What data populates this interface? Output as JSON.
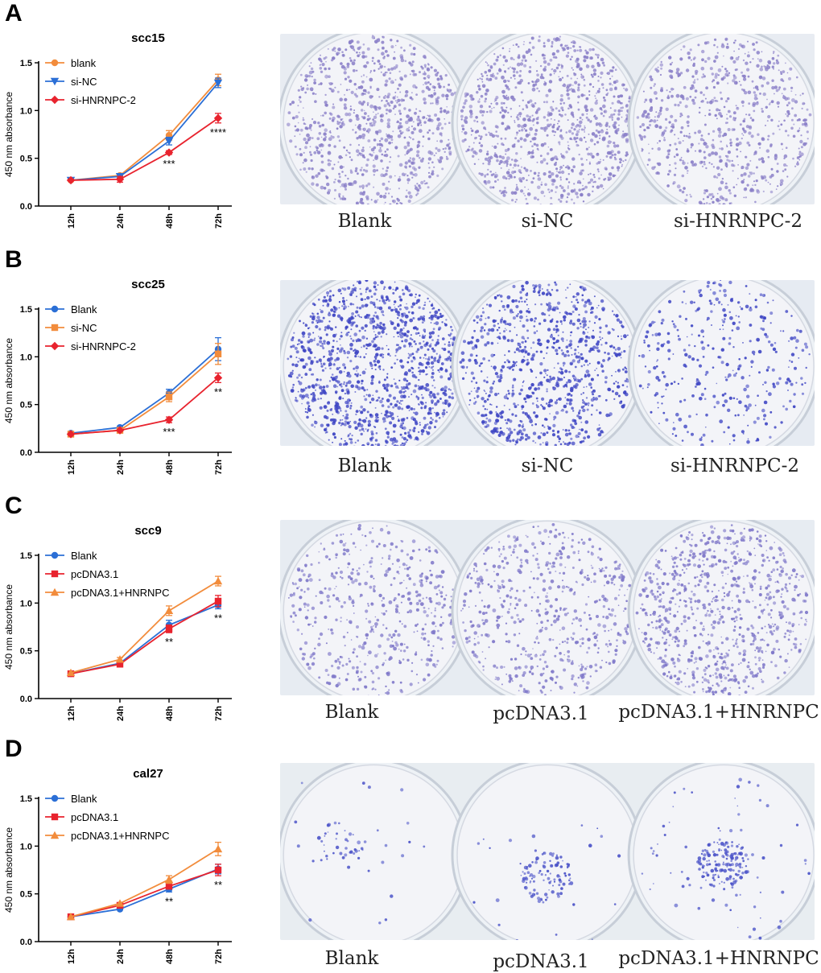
{
  "chart_data": [
    {
      "panel": "A",
      "type": "line",
      "title": "scc15",
      "ylabel": "450 nm absorbance",
      "xlabel": "",
      "categories": [
        "12h",
        "24h",
        "48h",
        "72h"
      ],
      "ylim": [
        0,
        1.5
      ],
      "yticks": [
        "0.0",
        "0.5",
        "1.0",
        "1.5"
      ],
      "series": [
        {
          "name": "blank",
          "color": "#f28c3c",
          "marker": "circle",
          "values": [
            0.27,
            0.32,
            0.74,
            1.32
          ],
          "errors": [
            0.01,
            0.02,
            0.05,
            0.06
          ]
        },
        {
          "name": "si-NC",
          "color": "#2b6fd6",
          "marker": "triangle-down",
          "values": [
            0.27,
            0.31,
            0.68,
            1.29
          ],
          "errors": [
            0.01,
            0.02,
            0.04,
            0.05
          ]
        },
        {
          "name": "si-HNRNPC-2",
          "color": "#e8232e",
          "marker": "diamond",
          "values": [
            0.27,
            0.28,
            0.56,
            0.92
          ],
          "errors": [
            0.01,
            0.03,
            0.02,
            0.05
          ]
        }
      ],
      "annotations": [
        {
          "category": "48h",
          "text": "***"
        },
        {
          "category": "72h",
          "text": "****"
        }
      ],
      "legend": "top-left"
    },
    {
      "panel": "B",
      "type": "line",
      "title": "scc25",
      "ylabel": "450 nm absorbance",
      "xlabel": "",
      "categories": [
        "12h",
        "24h",
        "48h",
        "72h"
      ],
      "ylim": [
        0,
        1.5
      ],
      "yticks": [
        "0.0",
        "0.5",
        "1.0",
        "1.5"
      ],
      "series": [
        {
          "name": "Blank",
          "color": "#2b6fd6",
          "marker": "circle",
          "values": [
            0.2,
            0.26,
            0.62,
            1.08
          ],
          "errors": [
            0.01,
            0.01,
            0.04,
            0.12
          ]
        },
        {
          "name": "si-NC",
          "color": "#f28c3c",
          "marker": "square",
          "values": [
            0.19,
            0.23,
            0.58,
            1.03
          ],
          "errors": [
            0.01,
            0.01,
            0.05,
            0.11
          ]
        },
        {
          "name": "si-HNRNPC-2",
          "color": "#e8232e",
          "marker": "diamond",
          "values": [
            0.19,
            0.23,
            0.34,
            0.78
          ],
          "errors": [
            0.01,
            0.01,
            0.03,
            0.05
          ]
        }
      ],
      "annotations": [
        {
          "category": "48h",
          "text": "***"
        },
        {
          "category": "72h",
          "text": "**"
        }
      ],
      "legend": "top-left"
    },
    {
      "panel": "C",
      "type": "line",
      "title": "scc9",
      "ylabel": "450 nm absorbance",
      "xlabel": "",
      "categories": [
        "12h",
        "24h",
        "48h",
        "72h"
      ],
      "ylim": [
        0,
        1.5
      ],
      "yticks": [
        "0.0",
        "0.5",
        "1.0",
        "1.5"
      ],
      "series": [
        {
          "name": "Blank",
          "color": "#2b6fd6",
          "marker": "circle",
          "values": [
            0.26,
            0.37,
            0.77,
            0.98
          ],
          "errors": [
            0.01,
            0.01,
            0.05,
            0.04
          ]
        },
        {
          "name": "pcDNA3.1",
          "color": "#e8232e",
          "marker": "square",
          "values": [
            0.26,
            0.36,
            0.73,
            1.02
          ],
          "errors": [
            0.01,
            0.01,
            0.04,
            0.06
          ]
        },
        {
          "name": "pcDNA3.1+HNRNPC",
          "color": "#f28c3c",
          "marker": "triangle-up",
          "values": [
            0.27,
            0.41,
            0.92,
            1.23
          ],
          "errors": [
            0.01,
            0.02,
            0.05,
            0.05
          ]
        }
      ],
      "annotations": [
        {
          "category": "48h",
          "text": "**"
        },
        {
          "category": "72h",
          "text": "**"
        }
      ],
      "legend": "top-left"
    },
    {
      "panel": "D",
      "type": "line",
      "title": "cal27",
      "ylabel": "450 nm absorbance",
      "xlabel": "",
      "categories": [
        "12h",
        "24h",
        "48h",
        "72h"
      ],
      "ylim": [
        0,
        1.5
      ],
      "yticks": [
        "0.0",
        "0.5",
        "1.0",
        "1.5"
      ],
      "series": [
        {
          "name": "Blank",
          "color": "#2b6fd6",
          "marker": "circle",
          "values": [
            0.26,
            0.34,
            0.55,
            0.76
          ],
          "errors": [
            0.01,
            0.01,
            0.03,
            0.05
          ]
        },
        {
          "name": "pcDNA3.1",
          "color": "#e8232e",
          "marker": "square",
          "values": [
            0.26,
            0.38,
            0.58,
            0.75
          ],
          "errors": [
            0.01,
            0.01,
            0.03,
            0.06
          ]
        },
        {
          "name": "pcDNA3.1+HNRNPC",
          "color": "#f28c3c",
          "marker": "triangle-up",
          "values": [
            0.26,
            0.4,
            0.65,
            0.97
          ],
          "errors": [
            0.01,
            0.01,
            0.04,
            0.07
          ]
        }
      ],
      "annotations": [
        {
          "category": "48h",
          "text": "**"
        },
        {
          "category": "72h",
          "text": "**"
        }
      ],
      "legend": "top-left"
    }
  ],
  "plates": [
    {
      "panel": "A",
      "labels": [
        "Blank",
        "si-NC",
        "si-HNRNPC-2"
      ],
      "colony_color": "#8a7fc8",
      "background": "#e8ecf2"
    },
    {
      "panel": "B",
      "labels": [
        "Blank",
        "si-NC",
        "si-HNRNPC-2"
      ],
      "colony_color": "#3f46c4",
      "background": "#e6ebf2"
    },
    {
      "panel": "C",
      "labels": [
        "Blank",
        "pcDNA3.1",
        "pcDNA3.1+HNRNPC"
      ],
      "colony_color": "#7f78c9",
      "background": "#e7ecf2"
    },
    {
      "panel": "D",
      "labels": [
        "Blank",
        "pcDNA3.1",
        "pcDNA3.1+HNRNPC"
      ],
      "colony_color": "#4a52c8",
      "background": "#e8edf1"
    }
  ]
}
